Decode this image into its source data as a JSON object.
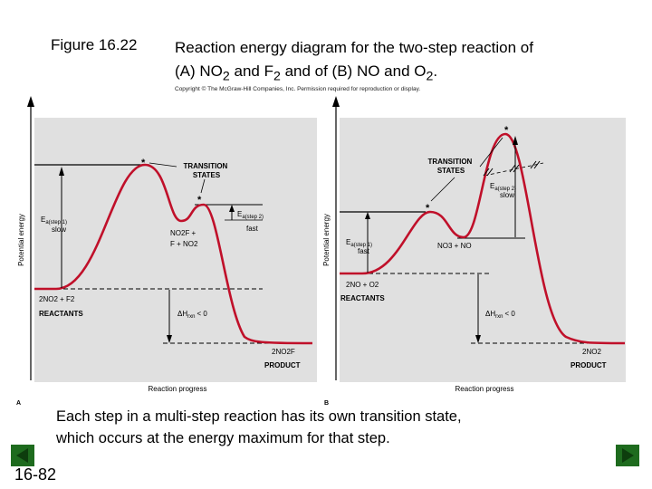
{
  "figure": {
    "label": "Figure 16.22",
    "title_line1": "Reaction energy diagram for the two-step reaction of",
    "title_line2_parts": {
      "p1": "(A) NO",
      "sub1": "2",
      "p2": " and F",
      "sub2": "2",
      "p3": " and of (B) NO and O",
      "sub3": "2",
      "p4": "."
    },
    "copyright": "Copyright © The McGraw-Hill Companies, Inc. Permission required for reproduction or display."
  },
  "diagram_a": {
    "panel_letter": "A",
    "y_axis_label": "Potential energy",
    "x_axis_label": "Reaction progress",
    "transition_states_label": [
      "TRANSITION",
      "STATES"
    ],
    "ts_marker": "*",
    "ea_step1": {
      "base": "E",
      "sub": "a(step 1)",
      "qualifier": "slow"
    },
    "ea_step2": {
      "base": "E",
      "sub": "a(step 2)",
      "qualifier": "fast"
    },
    "intermediate": [
      "NO2F +",
      "F + NO2"
    ],
    "reactants_formula": "2NO2 + F2",
    "reactants_label": "REACTANTS",
    "delta_h": {
      "base": "ΔH",
      "sub": "rxn",
      "rel": "< 0"
    },
    "product_formula": "2NO2F",
    "product_label": "PRODUCT"
  },
  "diagram_b": {
    "panel_letter": "B",
    "y_axis_label": "Potential energy",
    "x_axis_label": "Reaction progress",
    "transition_states_label": [
      "TRANSITION",
      "STATES"
    ],
    "ts_marker": "*",
    "ea_step1": {
      "base": "E",
      "sub": "a(step 1)",
      "qualifier": "fast"
    },
    "ea_step2": {
      "base": "E",
      "sub": "a(step 2)",
      "qualifier": "slow"
    },
    "intermediate": [
      "NO3 + NO"
    ],
    "reactants_formula": "2NO + O2",
    "reactants_label": "REACTANTS",
    "delta_h": {
      "base": "ΔH",
      "sub": "rxn",
      "rel": "< 0"
    },
    "product_formula": "2NO2",
    "product_label": "PRODUCT"
  },
  "caption": {
    "line1": "Each step in a multi-step reaction has its own transition state,",
    "line2": "which occurs at the energy maximum for that step."
  },
  "slide_number": "16-82",
  "colors": {
    "panel_bg": "#e0e0e0",
    "nav_green": "#1e6b1e",
    "nav_arrow": "#0d3d0d"
  }
}
